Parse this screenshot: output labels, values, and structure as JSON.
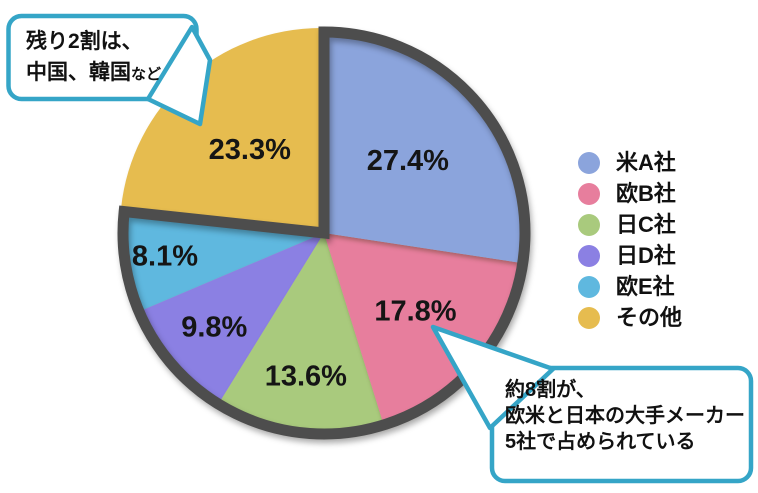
{
  "chart_data": {
    "type": "pie",
    "title": "",
    "unit": "%",
    "direction": "clockwise",
    "start_angle_deg": 0,
    "legend_position": "right",
    "slices": [
      {
        "label": "米A社",
        "value": 27.4,
        "display": "27.4%",
        "color": "#8BA4DC",
        "exploded": false
      },
      {
        "label": "欧B社",
        "value": 17.8,
        "display": "17.8%",
        "color": "#E77E9D",
        "exploded": false
      },
      {
        "label": "日C社",
        "value": 13.6,
        "display": "13.6%",
        "color": "#A9CA7D",
        "exploded": false
      },
      {
        "label": "日D社",
        "value": 9.8,
        "display": "9.8%",
        "color": "#8B80E3",
        "exploded": false
      },
      {
        "label": "欧E社",
        "value": 8.1,
        "display": "8.1%",
        "color": "#5FB8DF",
        "exploded": false
      },
      {
        "label": "その他",
        "value": 23.3,
        "display": "23.3%",
        "color": "#E6BC4F",
        "exploded": true
      }
    ],
    "group_outline": {
      "color": "#4D4D4D",
      "covers": [
        "米A社",
        "欧B社",
        "日C社",
        "日D社",
        "欧E社"
      ]
    }
  },
  "callouts": [
    {
      "name": "remainder-note",
      "border_color": "#35A5C7",
      "line1": "残り2割は、",
      "line2_main": "中国、韓国",
      "line2_small": "など",
      "points_to": "その他"
    },
    {
      "name": "majority-note",
      "border_color": "#35A5C7",
      "line1": "約8割が、",
      "line2": "欧米と日本の大手メーカー",
      "line3": "5社で占められている",
      "points_to": "欧B社"
    }
  ]
}
